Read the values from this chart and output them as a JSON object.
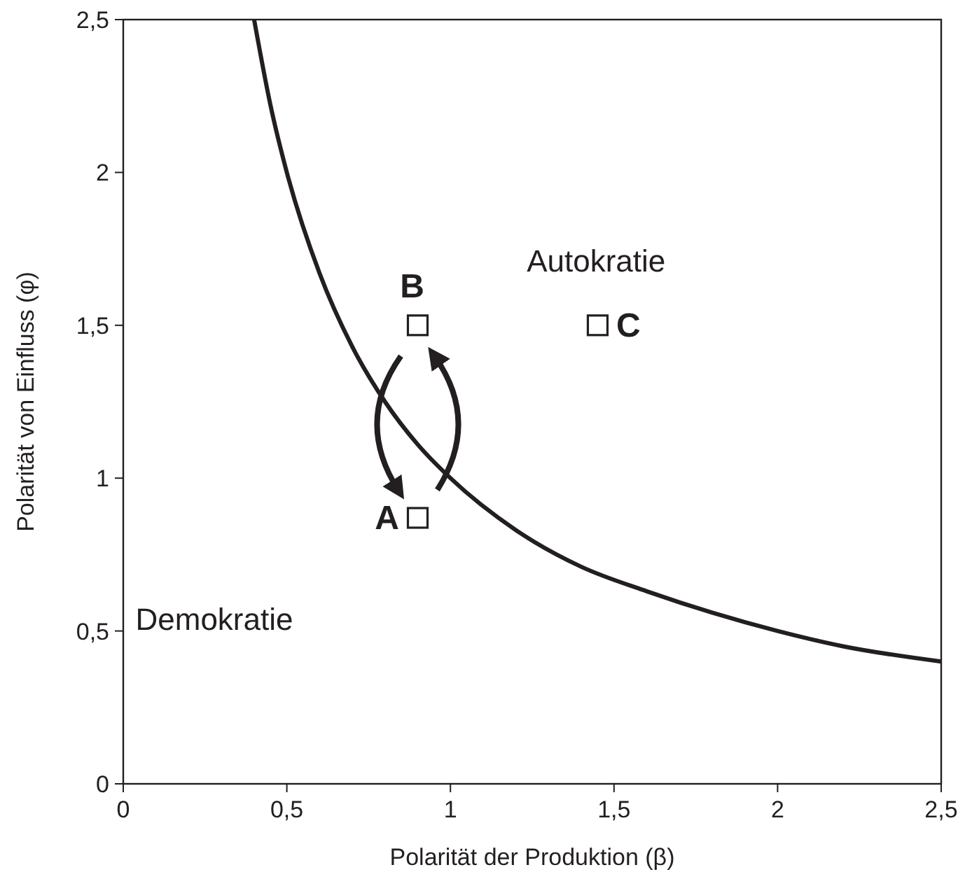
{
  "chart_data": {
    "type": "line",
    "xlabel": "Polarität der Produktion (β)",
    "ylabel": "Polarität von Einfluss (φ)",
    "xlim": [
      0,
      2.5
    ],
    "ylim": [
      0,
      2.5
    ],
    "xticks": [
      0,
      {
        "value": 0.5,
        "label": "0,5"
      },
      1,
      {
        "value": 1.5,
        "label": "1,5"
      },
      2,
      {
        "value": 2.5,
        "label": "2,5"
      }
    ],
    "yticks": [
      0,
      {
        "value": 0.5,
        "label": "0,5"
      },
      1,
      {
        "value": 1.5,
        "label": "1,5"
      },
      2,
      {
        "value": 2.5,
        "label": "2,5"
      }
    ],
    "grid": false,
    "series": [
      {
        "color": "#231f20",
        "marker": "none",
        "line_style": "solid",
        "x": [
          0.4,
          0.45,
          0.5,
          0.6,
          0.7,
          0.8,
          0.9,
          1,
          1.2,
          1.4,
          1.6,
          1.8,
          2,
          2.2,
          2.5
        ],
        "values": [
          2.5,
          2.22,
          2,
          1.67,
          1.43,
          1.25,
          1.11,
          1,
          0.83,
          0.71,
          0.63,
          0.56,
          0.5,
          0.45,
          0.4
        ]
      },
      {
        "type": "scatter",
        "color": "#231f20",
        "marker": "square",
        "x": [
          0.9,
          0.9,
          1.45
        ],
        "values": [
          0.87,
          1.5,
          1.5
        ],
        "value_labels": [
          "A",
          "B",
          "C"
        ]
      }
    ],
    "annotations": [
      "Autokratie",
      "Demokratie"
    ]
  }
}
